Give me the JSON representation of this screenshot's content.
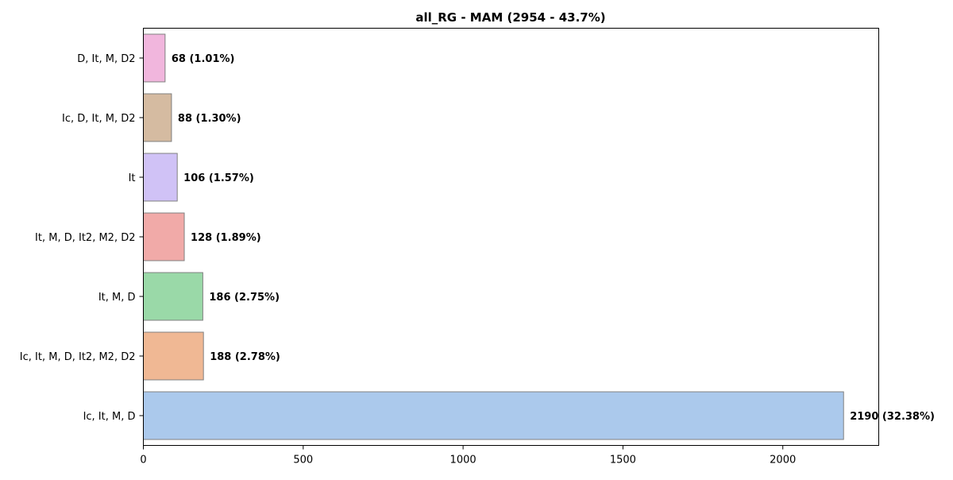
{
  "chart_data": {
    "type": "bar",
    "orientation": "horizontal",
    "title": "all_RG - MAM (2954 - 43.7%)",
    "xlabel": "",
    "ylabel": "",
    "xlim": [
      0,
      2300
    ],
    "x_ticks": [
      0,
      500,
      1000,
      1500,
      2000
    ],
    "grid": false,
    "categories": [
      "D, It, M, D2",
      "Ic, D, It, M, D2",
      "It",
      "It, M, D, It2, M2, D2",
      "It, M, D",
      "Ic, It, M, D, It2, M2, D2",
      "Ic, It, M, D"
    ],
    "values": [
      68,
      88,
      106,
      128,
      186,
      188,
      2190
    ],
    "data_labels": [
      "68 (1.01%)",
      "88 (1.30%)",
      "106 (1.57%)",
      "128 (1.89%)",
      "186 (2.75%)",
      "188 (2.78%)",
      "2190 (32.38%)"
    ],
    "colors": [
      "#f1b6dd",
      "#d5bba1",
      "#d0c2f6",
      "#f1aaa8",
      "#9ad9a8",
      "#f0b894",
      "#abc9ec"
    ],
    "bar_edge_color": "#808080"
  }
}
